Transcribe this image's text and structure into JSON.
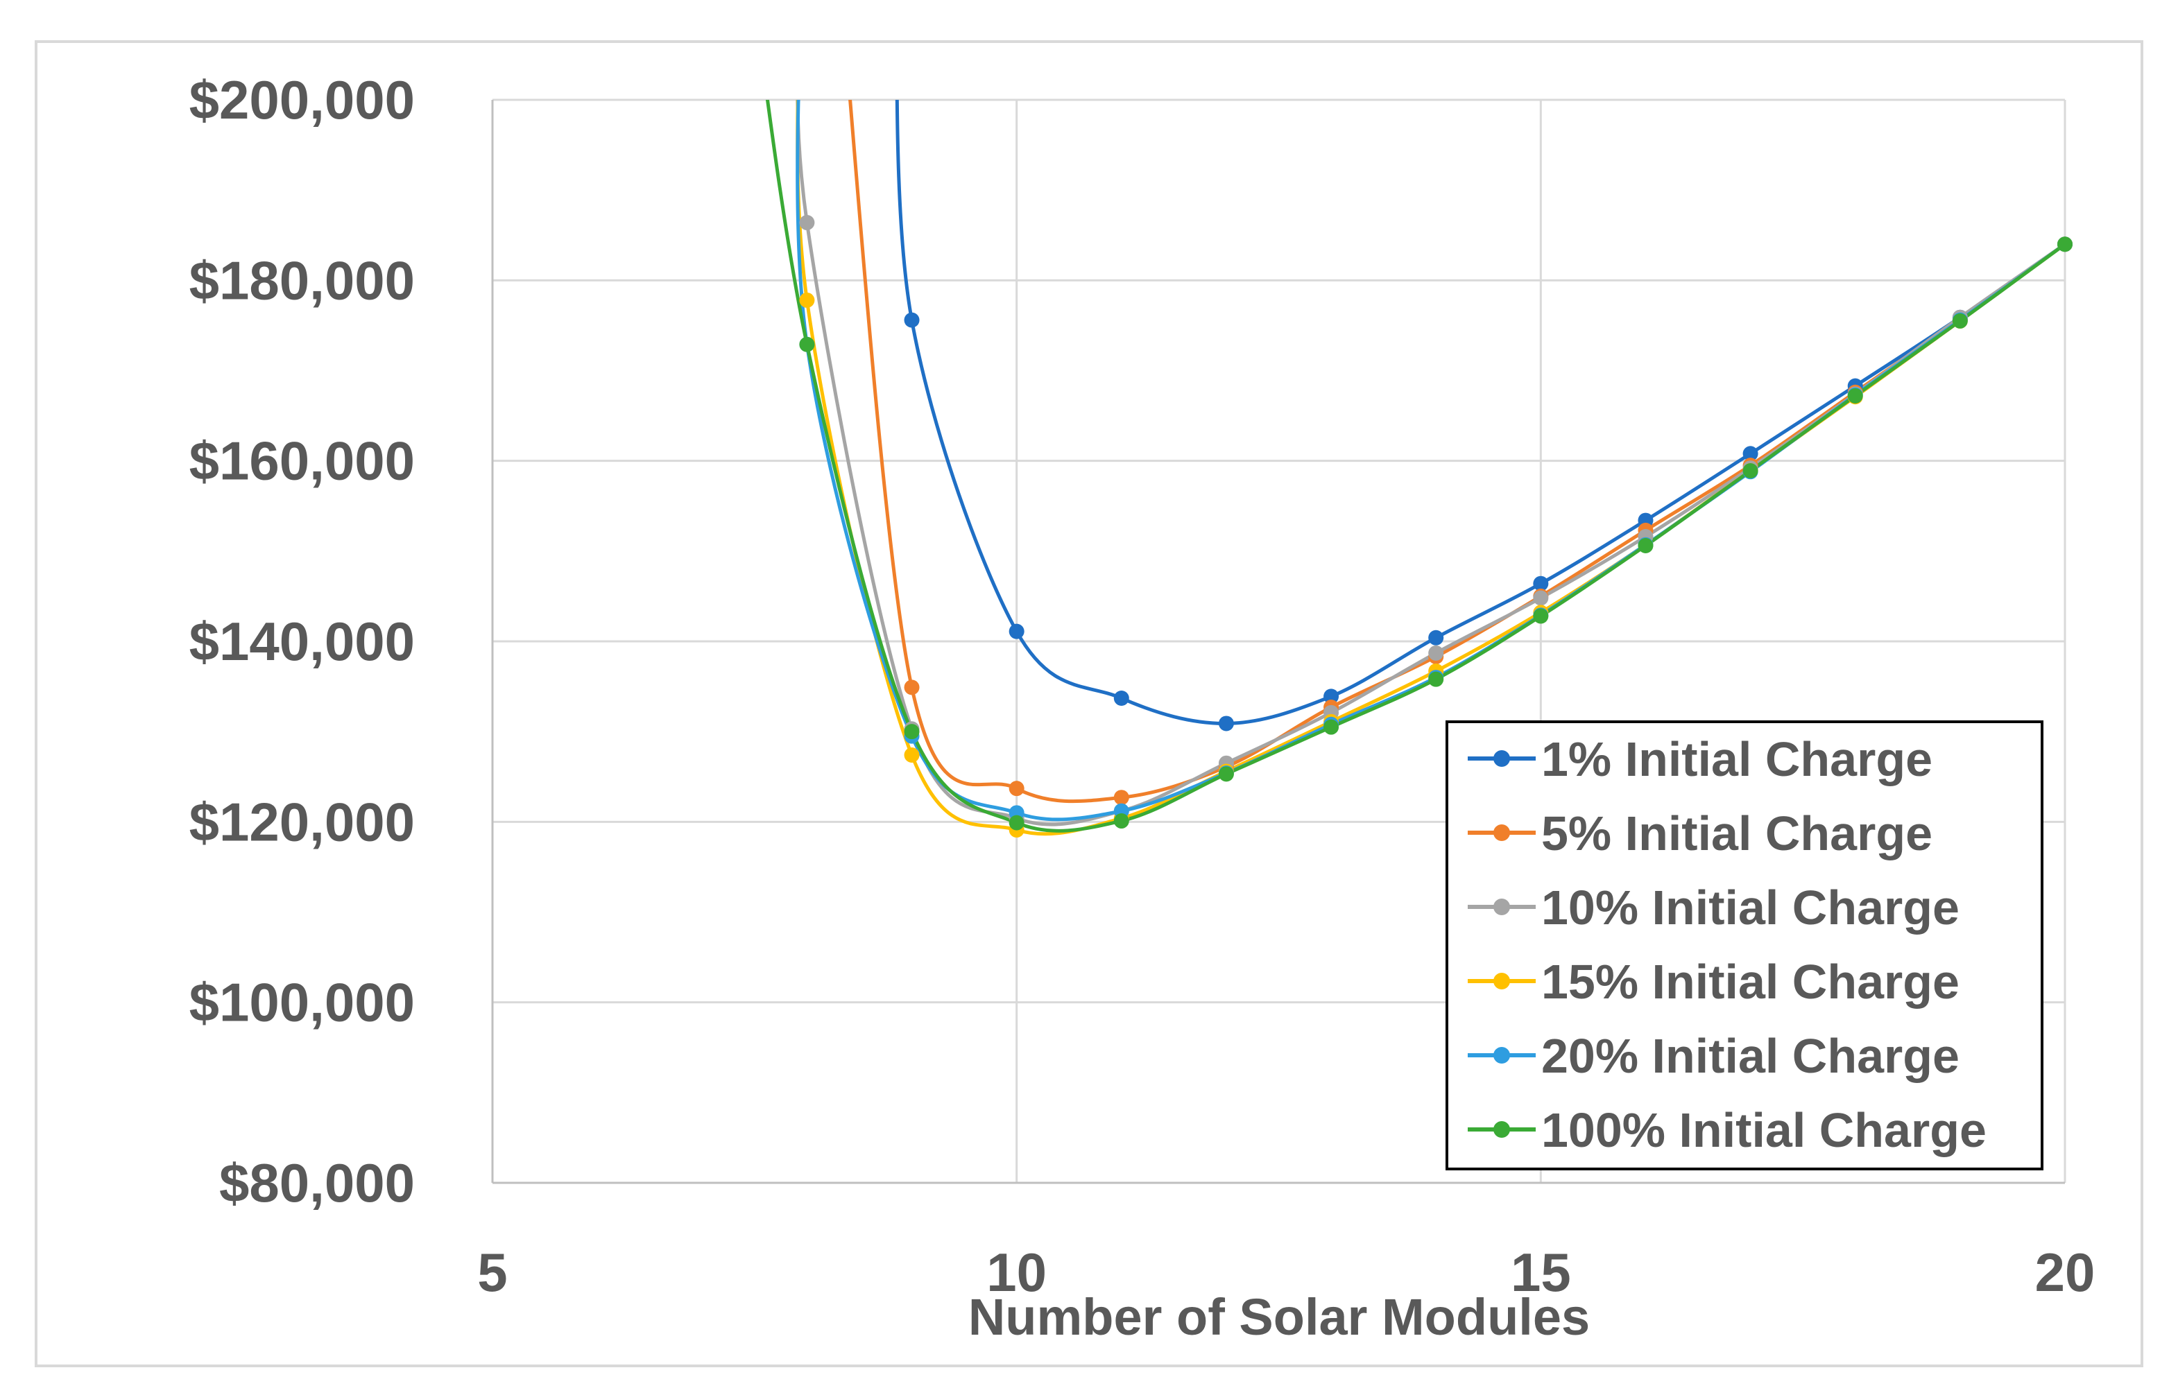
{
  "chart_data": {
    "type": "line",
    "title": "",
    "xlabel": "Number of Solar Modules",
    "ylabel": "",
    "xlim": [
      5,
      20
    ],
    "ylim": [
      80000,
      200000
    ],
    "x_ticks": [
      5,
      10,
      15,
      20
    ],
    "x_tick_labels": [
      "5",
      "10",
      "15",
      "20"
    ],
    "y_ticks": [
      80000,
      100000,
      120000,
      140000,
      160000,
      180000,
      200000
    ],
    "y_tick_labels": [
      "$80,000",
      "$100,000",
      "$120,000",
      "$140,000",
      "$160,000",
      "$180,000",
      "$200,000"
    ],
    "grid": true,
    "legend_position": "right",
    "x": [
      8,
      9,
      10,
      11,
      12,
      13,
      14,
      15,
      16,
      17,
      18,
      19,
      20
    ],
    "series": [
      {
        "name": "1% Initial Charge",
        "color": "#1f6fc5",
        "values": [
          null,
          175600,
          141100,
          133700,
          130900,
          133900,
          140400,
          146400,
          153400,
          160800,
          168300,
          175900,
          184000
        ]
      },
      {
        "name": "5% Initial Charge",
        "color": "#f07f2a",
        "values": [
          null,
          134900,
          123700,
          122700,
          126100,
          132700,
          138300,
          145000,
          152300,
          159500,
          167600,
          175700,
          184000
        ]
      },
      {
        "name": "10% Initial Charge",
        "color": "#a5a5a5",
        "values": [
          186400,
          130300,
          120400,
          121200,
          126500,
          132100,
          138700,
          144800,
          151600,
          159200,
          167400,
          175900,
          184000
        ]
      },
      {
        "name": "15% Initial Charge",
        "color": "#ffc000",
        "values": [
          177800,
          127400,
          119100,
          120400,
          125600,
          131100,
          136700,
          143200,
          150700,
          158900,
          167100,
          175500,
          184000
        ]
      },
      {
        "name": "20% Initial Charge",
        "color": "#2e9de0",
        "values": [
          172900,
          129500,
          121000,
          121200,
          125400,
          130800,
          136000,
          142900,
          150700,
          158800,
          167300,
          175600,
          184000
        ]
      },
      {
        "name": "100% Initial Charge",
        "color": "#3aaa35",
        "values": [
          172900,
          130000,
          119900,
          120100,
          125300,
          130500,
          135800,
          142800,
          150600,
          158900,
          167200,
          175500,
          184000
        ]
      }
    ]
  }
}
